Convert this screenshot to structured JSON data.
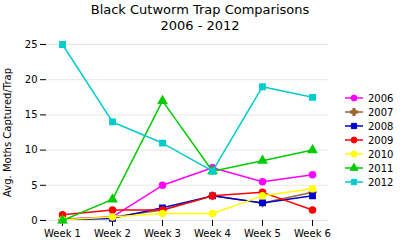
{
  "chart_data": {
    "type": "line",
    "title": "Black Cutworm Trap Comparisons\n2006 - 2012",
    "ylabel": "Avg. Moths Captured/Trap",
    "categories": [
      "Week 1",
      "Week 2",
      "Week 3",
      "Week 4",
      "Week 5",
      "Week 6"
    ],
    "series": [
      {
        "name": "2006",
        "color": "#FF00FF",
        "marker": "circle",
        "values": [
          0.2,
          0.5,
          5.0,
          7.5,
          5.5,
          6.5
        ]
      },
      {
        "name": "2007",
        "color": "#996633",
        "marker": "plus",
        "values": [
          0.1,
          0.5,
          1.5,
          3.5,
          2.5,
          4.0
        ]
      },
      {
        "name": "2008",
        "color": "#0000CC",
        "marker": "square",
        "values": [
          0.1,
          0.3,
          1.8,
          3.5,
          2.5,
          3.5
        ]
      },
      {
        "name": "2009",
        "color": "#FF0000",
        "marker": "circle",
        "values": [
          0.8,
          1.5,
          1.5,
          3.5,
          4.0,
          1.5
        ]
      },
      {
        "name": "2010",
        "color": "#FFFF00",
        "marker": "circle",
        "values": [
          0.1,
          0.5,
          1.0,
          1.0,
          3.5,
          4.5
        ]
      },
      {
        "name": "2011",
        "color": "#00CC00",
        "marker": "triangle",
        "values": [
          0.0,
          3.0,
          17.0,
          7.0,
          8.5,
          10.0
        ]
      },
      {
        "name": "2012",
        "color": "#00CCCC",
        "marker": "square",
        "values": [
          25.0,
          14.0,
          11.0,
          7.0,
          19.0,
          17.5
        ]
      }
    ],
    "ylim": [
      0,
      25
    ],
    "yticks": [
      0,
      5,
      10,
      15,
      20,
      25
    ],
    "grid": true,
    "legend": "right"
  }
}
